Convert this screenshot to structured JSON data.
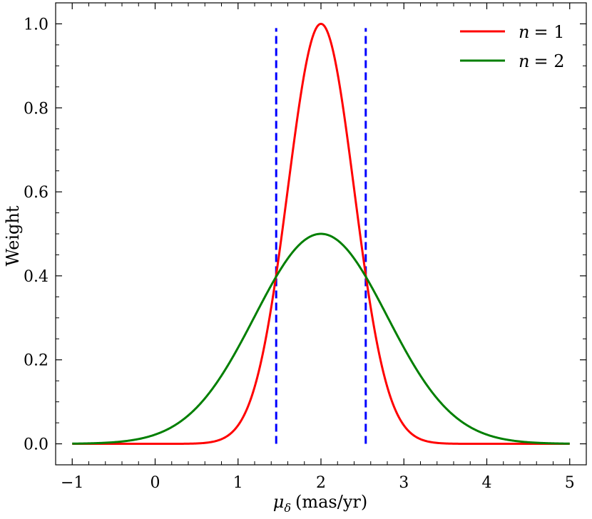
{
  "chart_data": {
    "type": "line",
    "title": "",
    "xlabel": "μδ (mas/yr)",
    "ylabel": "Weight",
    "xlim": [
      -1.2,
      5.2
    ],
    "ylim": [
      -0.05,
      1.05
    ],
    "x_ticks": [
      -1,
      0,
      1,
      2,
      3,
      4,
      5
    ],
    "x_tick_labels": [
      "−1",
      "0",
      "1",
      "2",
      "3",
      "4",
      "5"
    ],
    "y_ticks": [
      0.0,
      0.2,
      0.4,
      0.6,
      0.8,
      1.0
    ],
    "y_tick_labels": [
      "0.0",
      "0.2",
      "0.4",
      "0.6",
      "0.8",
      "1.0"
    ],
    "grid": false,
    "legend_position": "top-right",
    "series": [
      {
        "name": "n = 1",
        "color": "#ff0000",
        "function": "gaussian",
        "mean": 2.0,
        "sigma": 0.4,
        "peak": 1.0,
        "x_range": [
          -1,
          5
        ]
      },
      {
        "name": "n = 2",
        "color": "#007f00",
        "function": "gaussian",
        "mean": 2.0,
        "sigma": 0.8,
        "peak": 0.5,
        "x_range": [
          -1,
          5
        ]
      }
    ],
    "vlines": [
      {
        "x": 1.46,
        "y_range": [
          0,
          0.99
        ],
        "color": "#0000ff",
        "style": "dashed"
      },
      {
        "x": 2.54,
        "y_range": [
          0,
          0.99
        ],
        "color": "#0000ff",
        "style": "dashed"
      }
    ]
  },
  "legend": {
    "entries": [
      {
        "lhs": "n",
        "rhs": "= 1"
      },
      {
        "lhs": "n",
        "rhs": "= 2"
      }
    ]
  },
  "axis_labels": {
    "x_symbol": "μ",
    "x_subscript": "δ",
    "x_units": "(mas/yr)",
    "y": "Weight"
  }
}
